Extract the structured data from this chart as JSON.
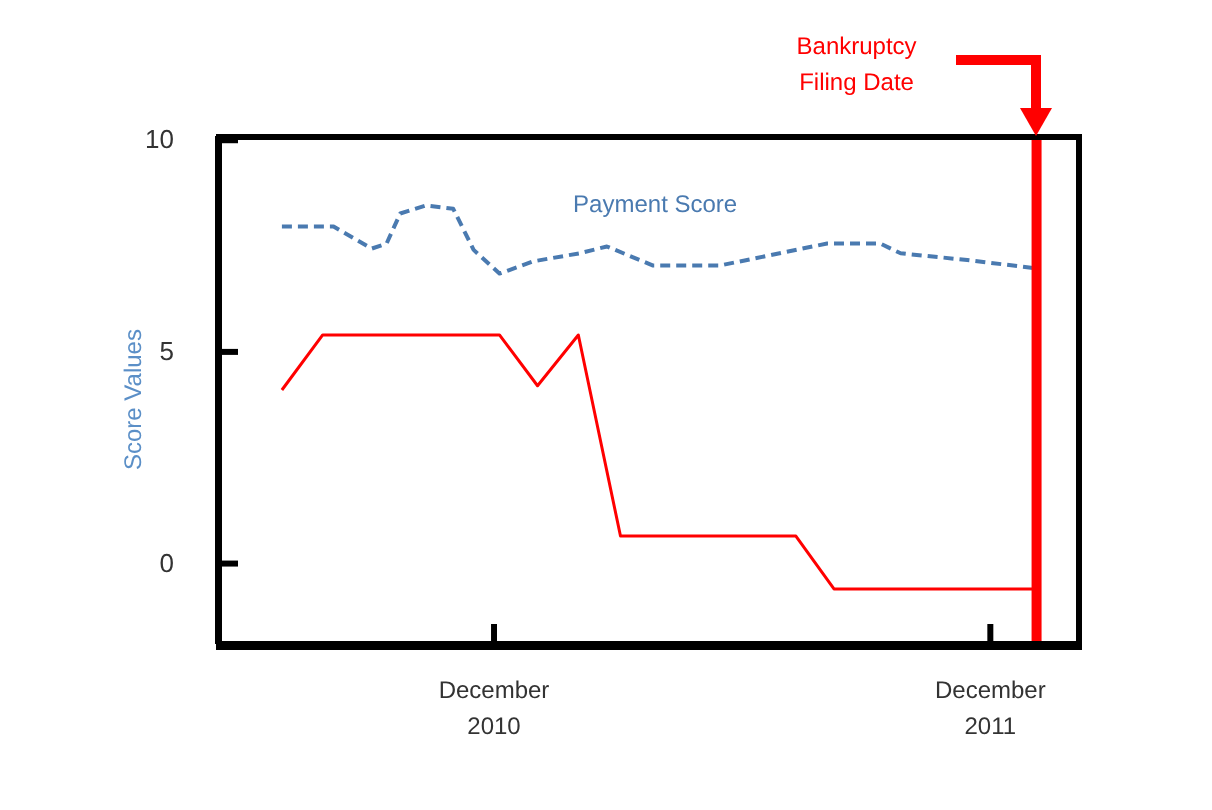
{
  "chart_data": {
    "type": "line",
    "ylabel": "Score Values",
    "xlim": [
      "2010-05-12",
      "2012-02-02"
    ],
    "xticks": [
      {
        "value": "2010-12-01",
        "label": "December\n2010"
      },
      {
        "value": "2011-12-01",
        "label": "December\n2011"
      }
    ],
    "ylim": [
      -1.9,
      10.1
    ],
    "yticks": [
      0,
      5,
      10
    ],
    "grid": false,
    "legend": false,
    "marker": "none",
    "series": [
      {
        "name": "Payment Score",
        "color": "#4a7ab0",
        "line_style": "dashed",
        "x": [
          "2010-06-28",
          "2010-08-05",
          "2010-09-02",
          "2010-09-13",
          "2010-09-23",
          "2010-10-12",
          "2010-11-01",
          "2010-11-16",
          "2010-12-05",
          "2010-12-30",
          "2011-02-02",
          "2011-02-22",
          "2011-03-28",
          "2011-05-16",
          "2011-08-03",
          "2011-09-11",
          "2011-09-26",
          "2011-11-14",
          "2012-01-02"
        ],
        "values": [
          7.96,
          7.96,
          7.44,
          7.56,
          8.27,
          8.46,
          8.38,
          7.41,
          6.85,
          7.14,
          7.33,
          7.49,
          7.04,
          7.04,
          7.56,
          7.56,
          7.33,
          7.17,
          6.98
        ]
      },
      {
        "color": "#ff0000",
        "line_style": "solid",
        "x": [
          "2010-06-28",
          "2010-07-28",
          "2010-12-05",
          "2011-01-02",
          "2011-02-01",
          "2011-03-04",
          "2011-07-11",
          "2011-08-08",
          "2012-01-03"
        ],
        "values": [
          4.1,
          5.4,
          5.4,
          4.2,
          5.4,
          0.65,
          0.65,
          -0.6,
          -0.6
        ]
      }
    ],
    "ref_lines": [
      {
        "axis": "x",
        "value": "2012-01-04",
        "label": "Bankruptcy\nFiling Date",
        "color": "#ff0000"
      }
    ]
  }
}
